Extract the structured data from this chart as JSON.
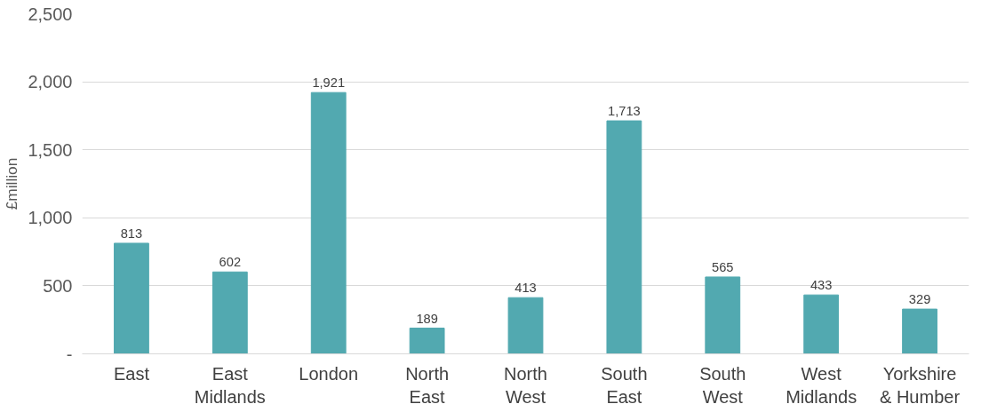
{
  "chart_data": {
    "type": "bar",
    "ylabel": "£million",
    "categories": [
      "East",
      "East Midlands",
      "London",
      "North East",
      "North West",
      "South East",
      "South West",
      "West Midlands",
      "Yorkshire & Humber"
    ],
    "values": [
      813,
      602,
      1921,
      189,
      413,
      1713,
      565,
      433,
      329
    ],
    "color": "#52a9b0",
    "ylim": [
      0,
      2500
    ],
    "yticks": [
      {
        "value": 0,
        "label": "-"
      },
      {
        "value": 500,
        "label": "500"
      },
      {
        "value": 1000,
        "label": "1,000"
      },
      {
        "value": 1500,
        "label": "1,500"
      },
      {
        "value": 2000,
        "label": "2,000"
      },
      {
        "value": 2500,
        "label": "2,500"
      }
    ],
    "value_labels": [
      "813",
      "602",
      "1,921",
      "189",
      "413",
      "1,713",
      "565",
      "433",
      "329"
    ],
    "grid": "y"
  }
}
